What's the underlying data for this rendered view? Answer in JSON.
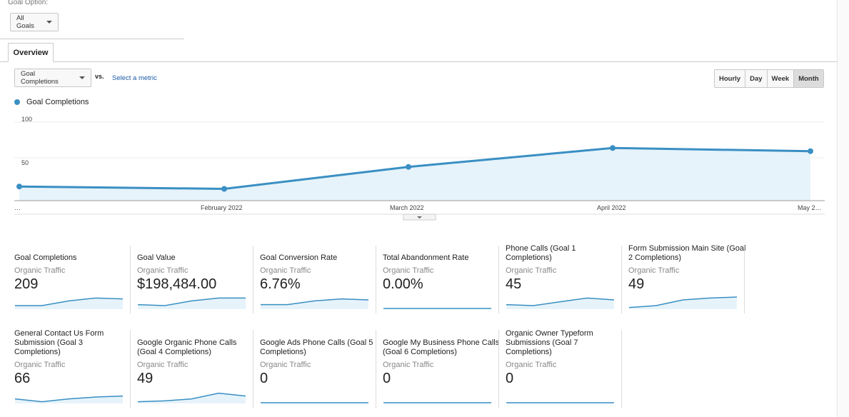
{
  "goal_option": {
    "label": "Goal Option:",
    "selected": "All Goals"
  },
  "tabs": [
    {
      "label": "Overview"
    }
  ],
  "metric": {
    "selected": "Goal Completions",
    "vs_label": "vs.",
    "secondary_link": "Select a metric"
  },
  "granularity": [
    "Hourly",
    "Day",
    "Week",
    "Month"
  ],
  "granularity_active": "Month",
  "chart_data": {
    "type": "area",
    "series": [
      {
        "name": "Goal Completions",
        "values": [
          18,
          15,
          43,
          67,
          63
        ]
      }
    ],
    "x": [
      "…",
      "February 2022",
      "March 2022",
      "April 2022",
      "May 2…"
    ],
    "ylim": [
      0,
      100
    ],
    "yticks": [
      50,
      100
    ],
    "line_color": "#3a8fc3",
    "fill_color": "#e6f3fa"
  },
  "scorecards": [
    {
      "title": "Goal Completions",
      "segment": "Organic Traffic",
      "value": "209",
      "spark": [
        3,
        3,
        8,
        11,
        10
      ]
    },
    {
      "title": "Goal Value",
      "segment": "Organic Traffic",
      "value": "$198,484.00",
      "spark": [
        4,
        3,
        8,
        11,
        11
      ]
    },
    {
      "title": "Goal Conversion Rate",
      "segment": "Organic Traffic",
      "value": "6.76%",
      "spark": [
        4,
        4,
        8,
        10,
        9
      ]
    },
    {
      "title": "Total Abandonment Rate",
      "segment": "Organic Traffic",
      "value": "0.00%",
      "spark": [
        0,
        0,
        0,
        0,
        0
      ]
    },
    {
      "title": "Phone Calls (Goal 1 Completions)",
      "segment": "Organic Traffic",
      "value": "45",
      "spark": [
        4,
        3,
        7,
        11,
        9
      ]
    },
    {
      "title": "Form Submission Main Site (Goal 2 Completions)",
      "segment": "Organic Traffic",
      "value": "49",
      "spark": [
        1,
        3,
        9,
        11,
        12
      ]
    },
    {
      "title": "General Contact Us Form Submission (Goal 3 Completions)",
      "segment": "Organic Traffic",
      "value": "66",
      "spark": [
        4,
        1,
        4,
        6,
        7
      ]
    },
    {
      "title": "Google Organic Phone Calls (Goal 4 Completions)",
      "segment": "Organic Traffic",
      "value": "49",
      "spark": [
        1,
        2,
        4,
        10,
        7
      ]
    },
    {
      "title": "Google Ads Phone Calls (Goal 5 Completions)",
      "segment": "Organic Traffic",
      "value": "0",
      "spark": [
        0,
        0,
        0,
        0,
        0
      ]
    },
    {
      "title": "Google My Business Phone Calls (Goal 6 Completions)",
      "segment": "Organic Traffic",
      "value": "0",
      "spark": [
        0,
        0,
        0,
        0,
        0
      ]
    },
    {
      "title": "Organic Owner Typeform Submissions (Goal 7 Completions)",
      "segment": "Organic Traffic",
      "value": "0",
      "spark": [
        0,
        0,
        0,
        0,
        0
      ]
    }
  ]
}
